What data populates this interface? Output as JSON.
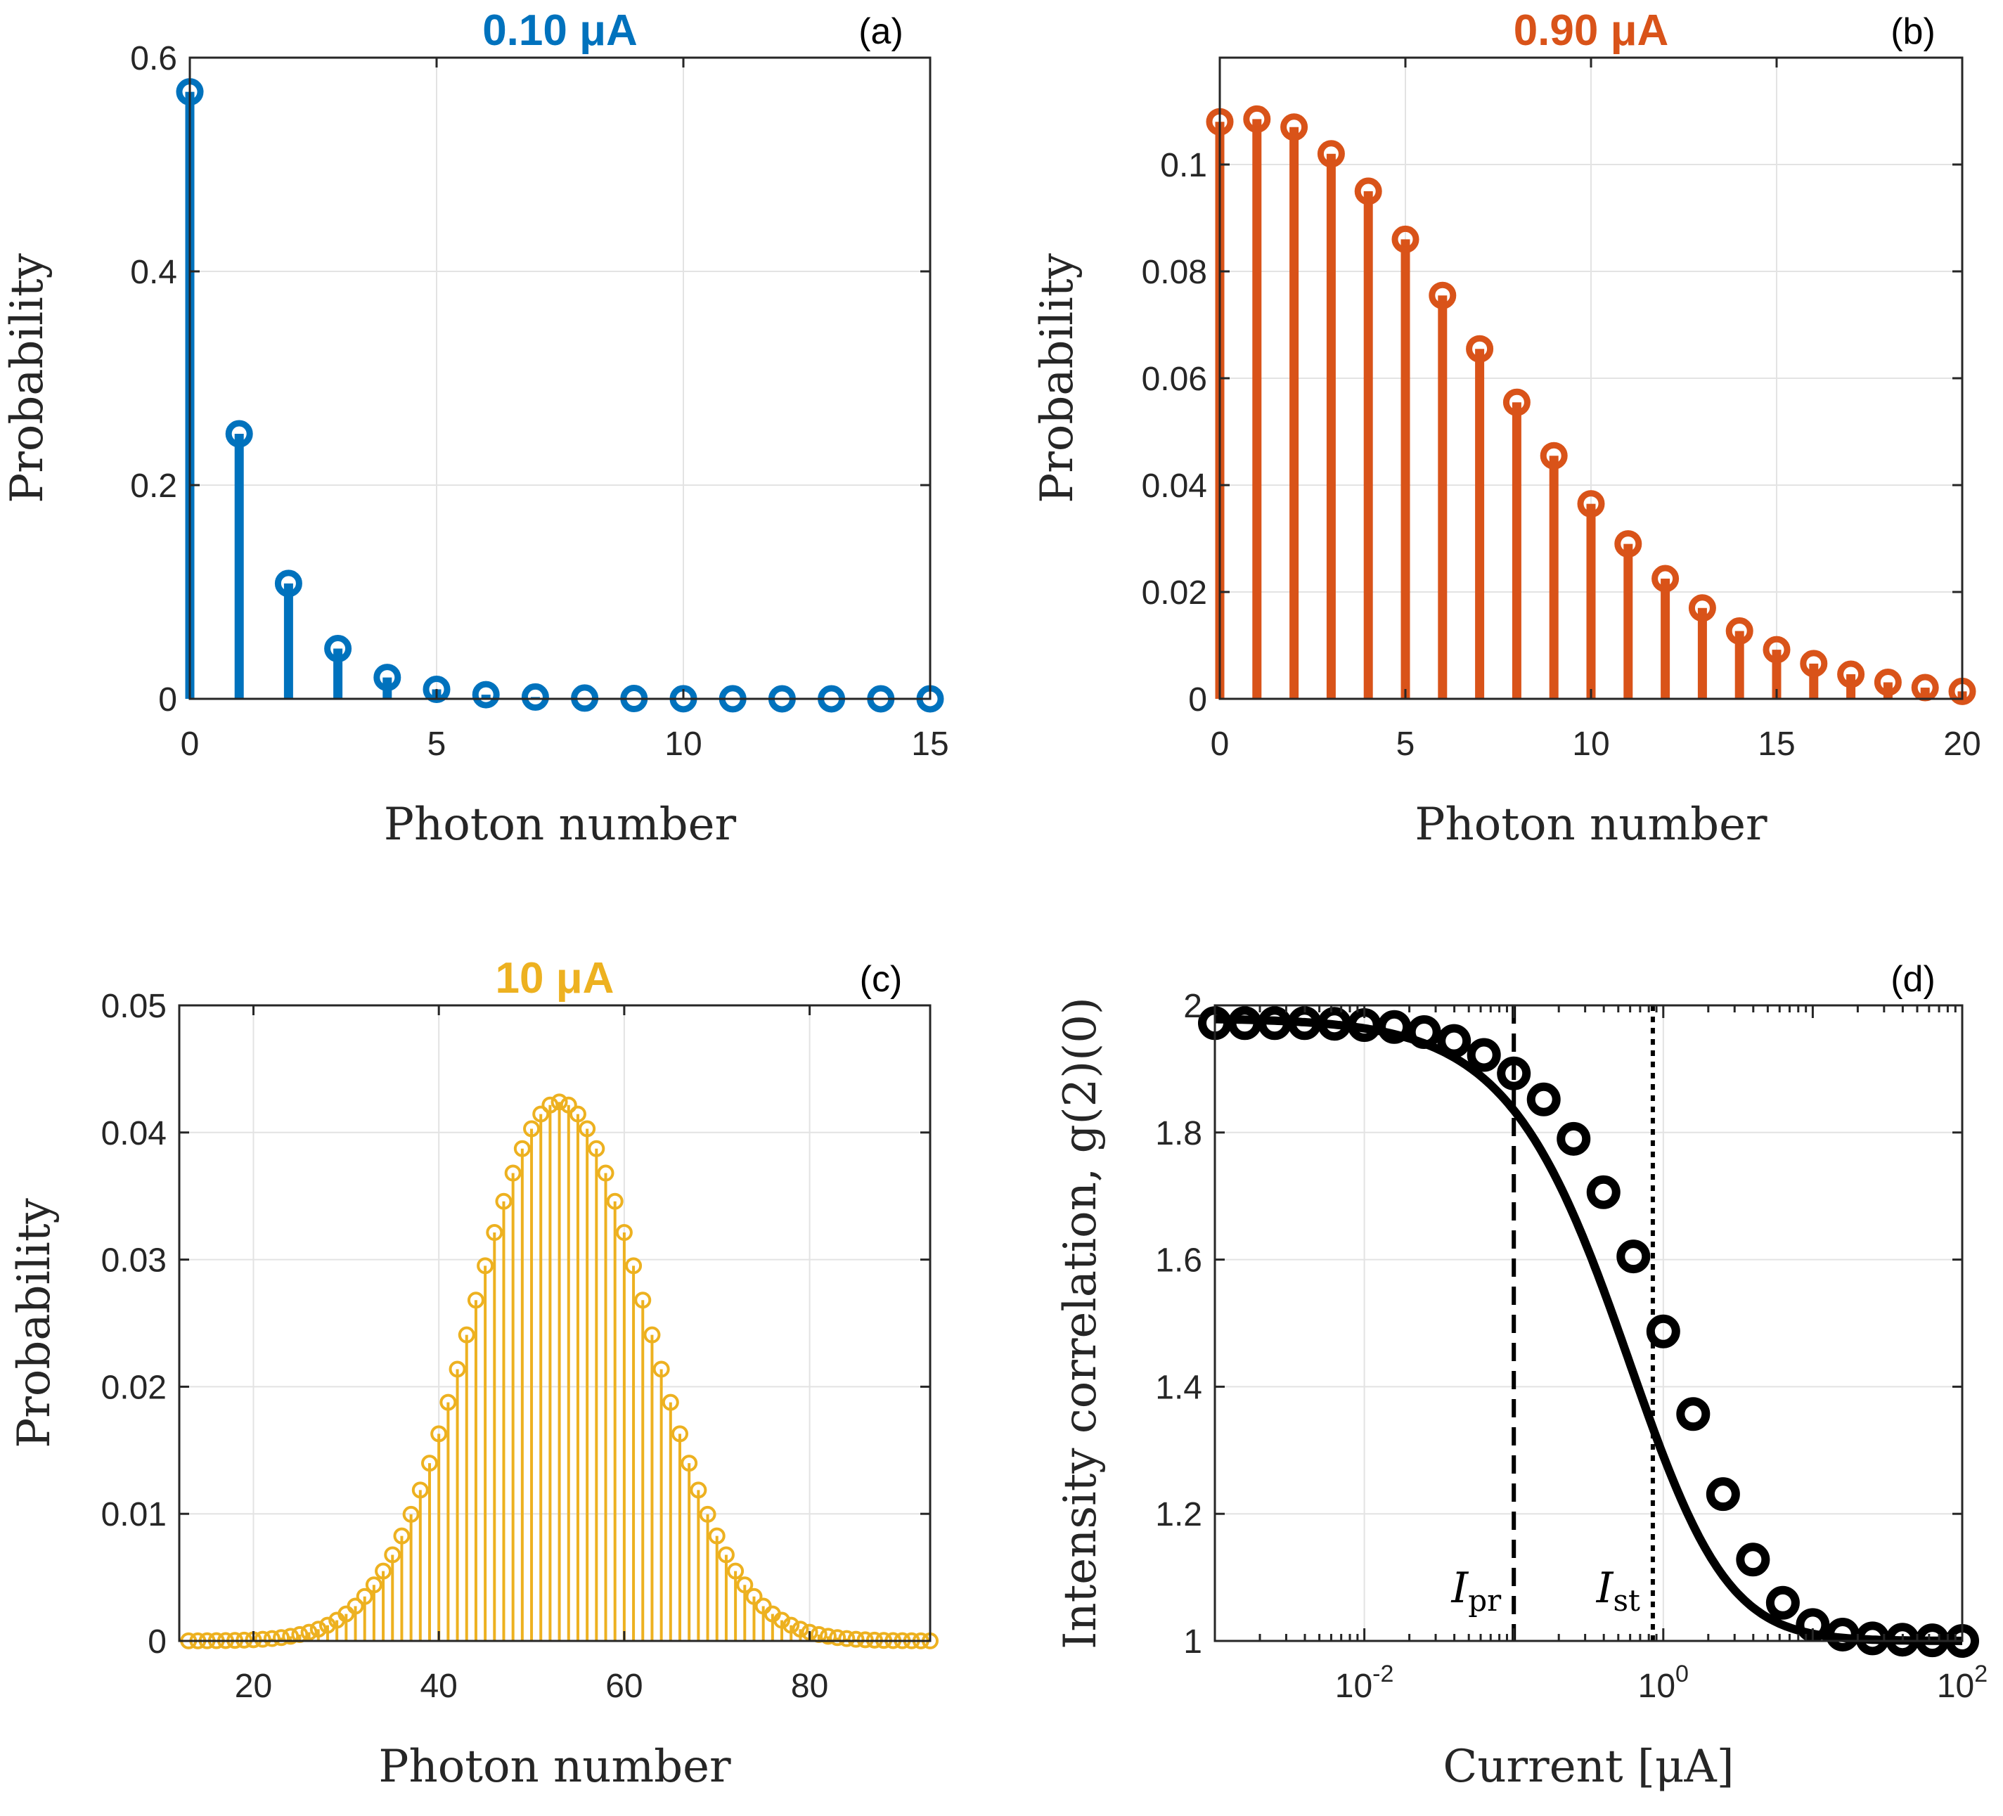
{
  "figure": {
    "description_free": true
  },
  "chart_data": [
    {
      "id": "a",
      "type": "stem",
      "panel_label": "(a)",
      "title": "0.10 μA",
      "title_color": "#0072BD",
      "color": "#0072BD",
      "xlabel": "Photon number",
      "ylabel": "Probability",
      "xlim": [
        0,
        15
      ],
      "ylim": [
        0,
        0.6
      ],
      "xticks": [
        0,
        5,
        10,
        15
      ],
      "xtick_labels": [
        "0",
        "5",
        "10",
        "15"
      ],
      "yticks": [
        0,
        0.2,
        0.4,
        0.6
      ],
      "ytick_labels": [
        "0",
        "0.2",
        "0.4",
        "0.6"
      ],
      "grid": true,
      "x": [
        0,
        1,
        2,
        3,
        4,
        5,
        6,
        7,
        8,
        9,
        10,
        11,
        12,
        13,
        14,
        15
      ],
      "y": [
        0.568,
        0.248,
        0.108,
        0.047,
        0.02,
        0.0089,
        0.0039,
        0.0017,
        0.0007,
        0.0003,
        0.0001,
        6e-05,
        3e-05,
        1e-05,
        5e-06,
        2e-06
      ]
    },
    {
      "id": "b",
      "type": "stem",
      "panel_label": "(b)",
      "title": "0.90 μA",
      "title_color": "#D95319",
      "color": "#D95319",
      "xlabel": "Photon number",
      "ylabel": "Probability",
      "xlim": [
        0,
        20
      ],
      "ylim": [
        0,
        0.12
      ],
      "xticks": [
        0,
        5,
        10,
        15,
        20
      ],
      "xtick_labels": [
        "0",
        "5",
        "10",
        "15",
        "20"
      ],
      "yticks": [
        0,
        0.02,
        0.04,
        0.06,
        0.08,
        0.1
      ],
      "ytick_labels": [
        "0",
        "0.02",
        "0.04",
        "0.06",
        "0.08",
        "0.1"
      ],
      "grid": true,
      "x": [
        0,
        1,
        2,
        3,
        4,
        5,
        6,
        7,
        8,
        9,
        10,
        11,
        12,
        13,
        14,
        15,
        16,
        17,
        18,
        19,
        20
      ],
      "y": [
        0.108,
        0.1085,
        0.107,
        0.102,
        0.095,
        0.086,
        0.0755,
        0.0655,
        0.0555,
        0.0455,
        0.0365,
        0.029,
        0.0225,
        0.017,
        0.0127,
        0.0092,
        0.0066,
        0.0046,
        0.0031,
        0.0021,
        0.0014
      ]
    },
    {
      "id": "c",
      "type": "stem",
      "panel_label": "(c)",
      "title": "10 μA",
      "title_color": "#EDB120",
      "color": "#EDB120",
      "xlabel": "Photon number",
      "ylabel": "Probability",
      "xlim": [
        12,
        93
      ],
      "ylim": [
        0,
        0.05
      ],
      "xticks": [
        20,
        40,
        60,
        80
      ],
      "xtick_labels": [
        "20",
        "40",
        "60",
        "80"
      ],
      "yticks": [
        0,
        0.01,
        0.02,
        0.03,
        0.04,
        0.05
      ],
      "ytick_labels": [
        "0",
        "0.01",
        "0.02",
        "0.03",
        "0.04",
        "0.05"
      ],
      "grid": true,
      "distribution": {
        "shape": "gaussian",
        "mean": 53,
        "sigma": 9.4,
        "peak": 0.0424,
        "x_start": 13,
        "x_end": 93
      }
    },
    {
      "id": "d",
      "type": "scatter_line_logx",
      "panel_label": "(d)",
      "xlabel": "Current [μA]",
      "ylabel": "Intensity correlation, g(2)(0)",
      "xlim_log10": [
        -3,
        2
      ],
      "ylim": [
        1,
        2
      ],
      "xtick_exponents": [
        -2,
        0,
        2
      ],
      "xtick_base": "10",
      "xtick_exp_labels": [
        "-2",
        "0",
        "2"
      ],
      "yticks": [
        1,
        1.2,
        1.4,
        1.6,
        1.8,
        2
      ],
      "ytick_labels": [
        "1",
        "1.2",
        "1.4",
        "1.6",
        "1.8",
        "2"
      ],
      "grid": true,
      "marker_color": "#000000",
      "points": {
        "log10_x": [
          -3.0,
          -2.8,
          -2.6,
          -2.4,
          -2.2,
          -2.0,
          -1.8,
          -1.6,
          -1.4,
          -1.2,
          -1.0,
          -0.8,
          -0.6,
          -0.4,
          -0.2,
          0.0,
          0.2,
          0.4,
          0.6,
          0.8,
          1.0,
          1.2,
          1.4,
          1.6,
          1.8,
          2.0
        ],
        "y": [
          1.972,
          1.972,
          1.972,
          1.972,
          1.971,
          1.969,
          1.966,
          1.958,
          1.944,
          1.922,
          1.893,
          1.852,
          1.79,
          1.706,
          1.605,
          1.487,
          1.357,
          1.231,
          1.128,
          1.06,
          1.025,
          1.01,
          1.004,
          1.002,
          1.001,
          1.0
        ]
      },
      "fit_curve": {
        "model": "1 + 0.98/(1 + I/I0)^2",
        "I0": 1.2
      },
      "markers": [
        {
          "label_main": "I",
          "label_sub": "pr",
          "log10_x": -1.0,
          "style": "dashed"
        },
        {
          "label_main": "I",
          "label_sub": "st",
          "log10_x": -0.07,
          "style": "dotted"
        }
      ]
    }
  ]
}
